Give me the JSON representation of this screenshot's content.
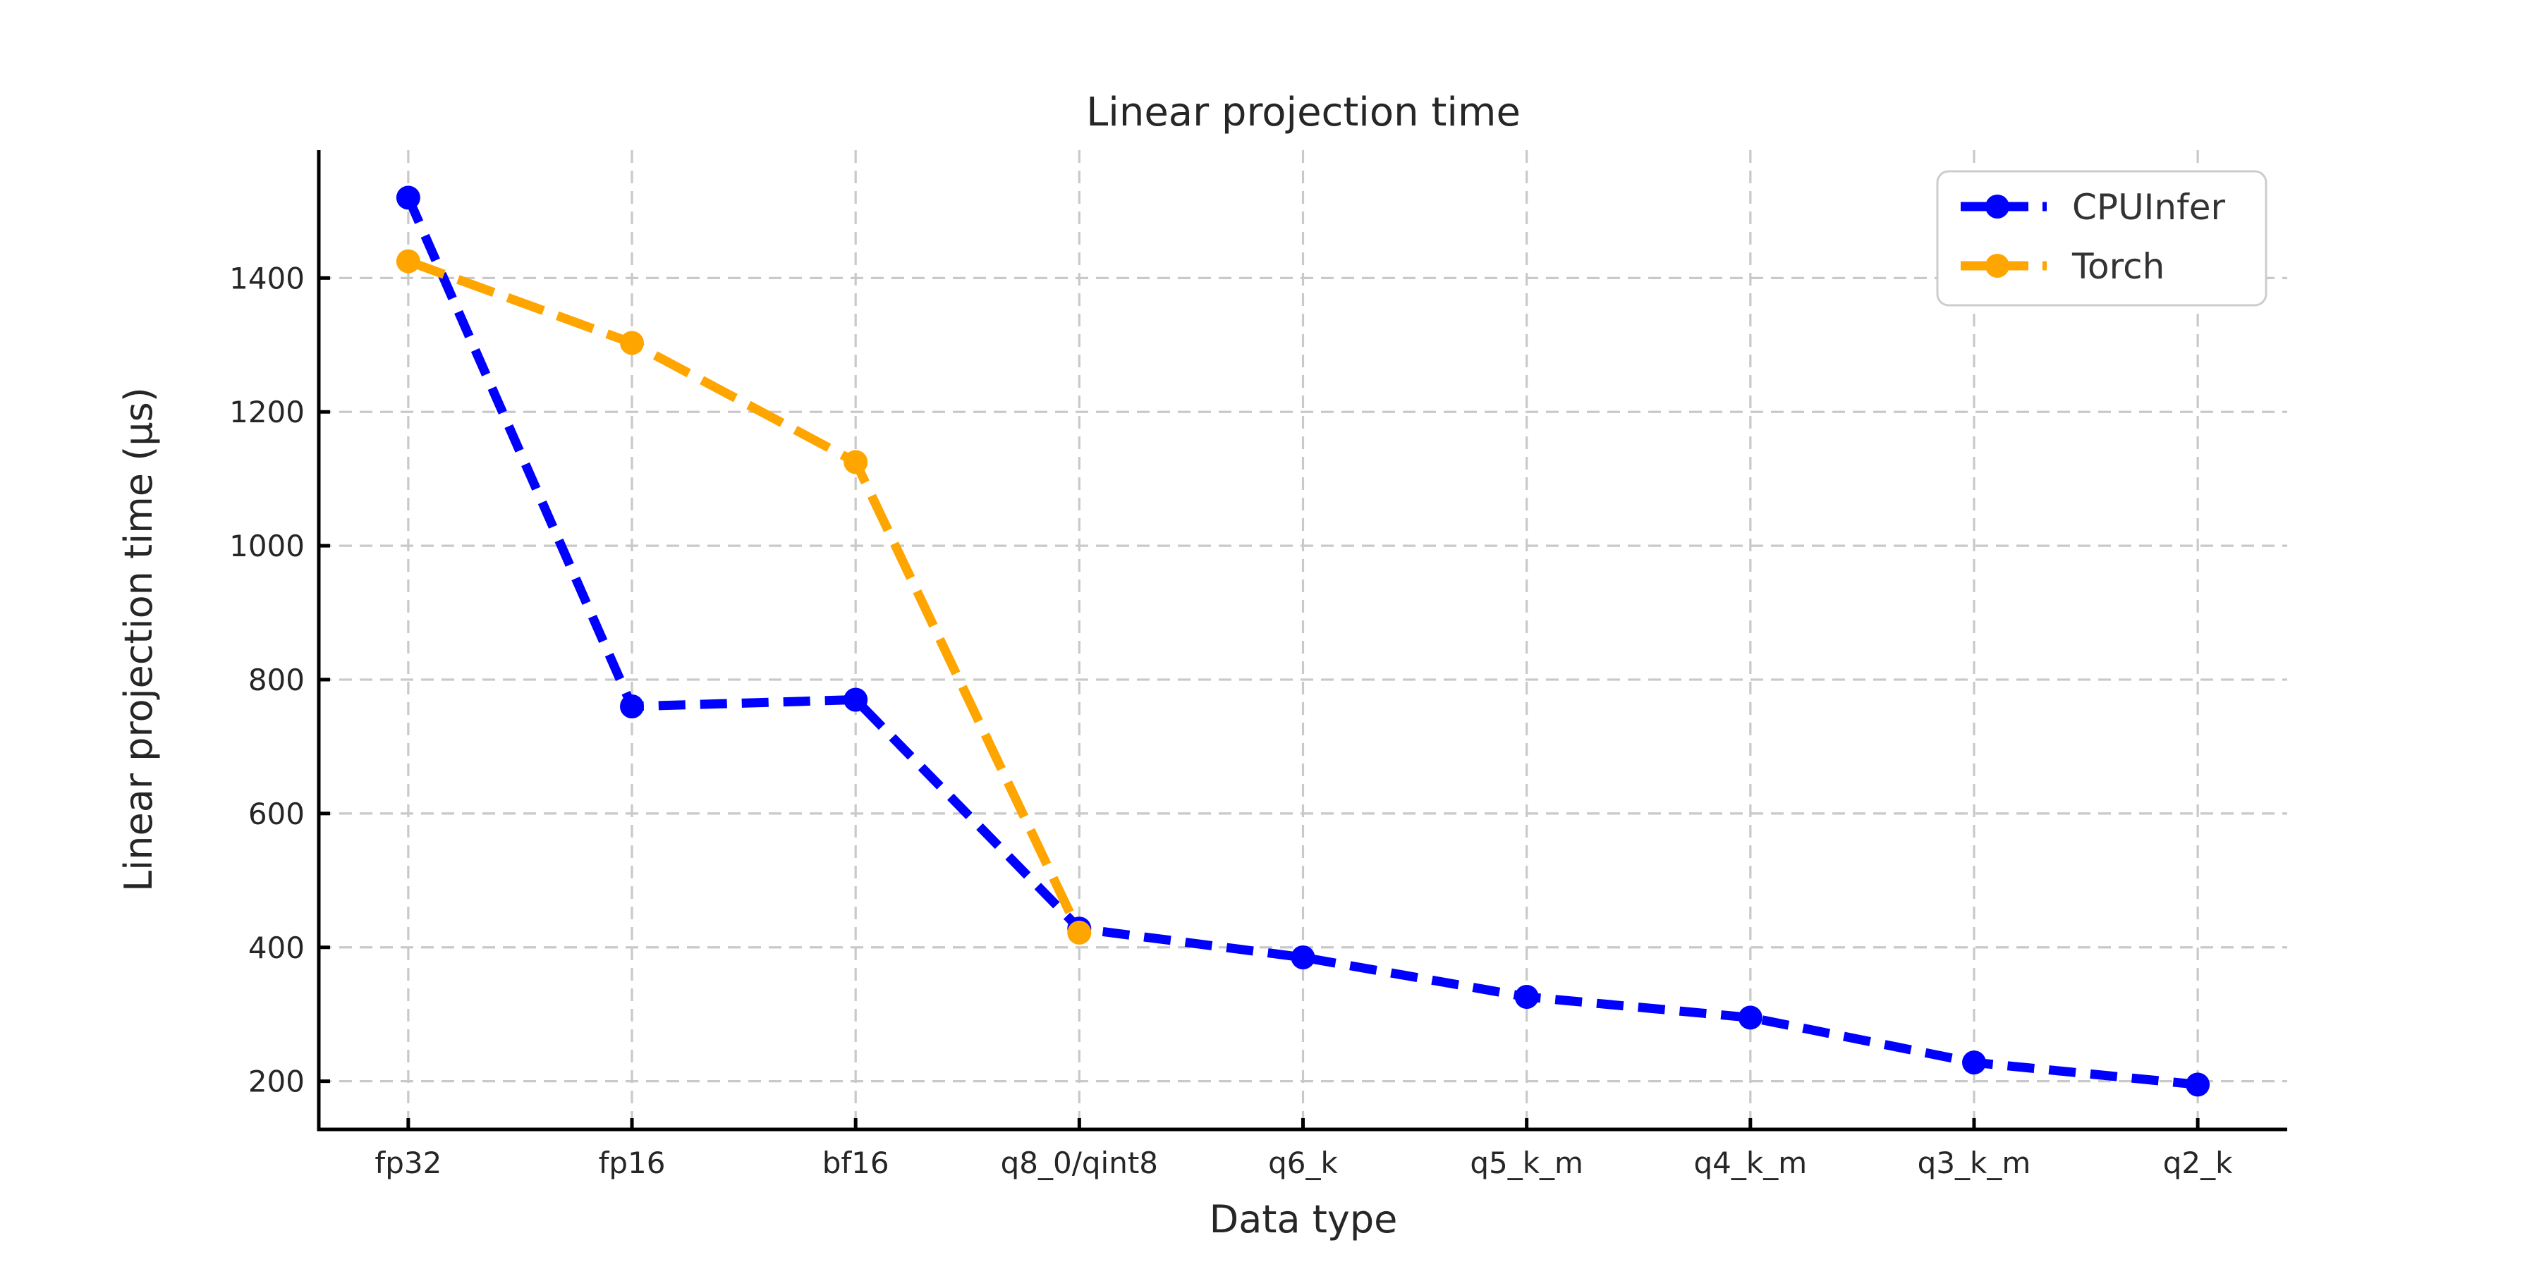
{
  "chart_data": {
    "type": "line",
    "title": "Linear projection time",
    "xlabel": "Data type",
    "ylabel": "Linear projection time (µs)",
    "categories": [
      "fp32",
      "fp16",
      "bf16",
      "q8_0/qint8",
      "q6_k",
      "q5_k_m",
      "q4_k_m",
      "q3_k_m",
      "q2_k"
    ],
    "y_ticks": [
      200,
      400,
      600,
      800,
      1000,
      1200,
      1400
    ],
    "ylim": [
      128,
      1591
    ],
    "x_margin": 0.4,
    "grid": true,
    "grid_style": "dashed",
    "legend_position": "upper right",
    "marker": "circle",
    "linestyle": "dashed",
    "series": [
      {
        "name": "CPUInfer",
        "color": "#0000ff",
        "dash": [
          38,
          21
        ],
        "values": [
          1520,
          760,
          770,
          428,
          385,
          326,
          295,
          228,
          195
        ]
      },
      {
        "name": "Torch",
        "color": "#ffa500",
        "dash": [
          54,
          21
        ],
        "values": [
          1425,
          1303,
          1125,
          422
        ]
      }
    ],
    "style": {
      "grid_color": "#c9c9c9",
      "spine_color": "#000000",
      "text_color": "#262626",
      "legend_border_color": "#cccccc",
      "background": "#ffffff",
      "line_width": 13,
      "marker_radius": 17
    }
  }
}
